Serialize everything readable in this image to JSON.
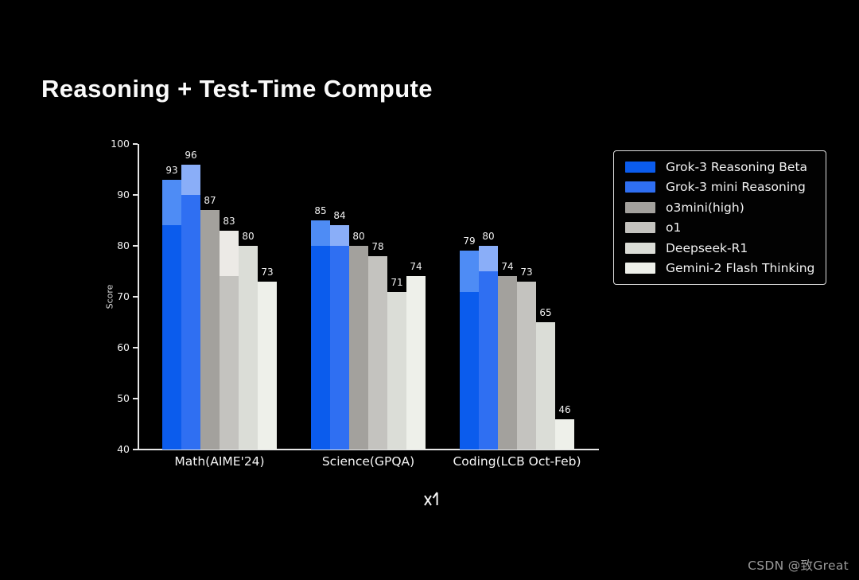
{
  "page": {
    "title": "Reasoning + Test-Time Compute",
    "watermark": "CSDN @致Great"
  },
  "chart_data": {
    "type": "bar",
    "title": "Reasoning + Test-Time Compute",
    "xlabel": "",
    "ylabel": "Score",
    "ylim": [
      40,
      100
    ],
    "yticks": [
      40,
      50,
      60,
      70,
      80,
      90,
      100
    ],
    "grid": false,
    "legend_position": "upper right outside",
    "categories": [
      "Math(AIME'24)",
      "Science(GPQA)",
      "Coding(LCB Oct-Feb)"
    ],
    "series": [
      {
        "name": "Grok-3 Reasoning Beta",
        "color": "#0b5ced",
        "light_color": "#4e8cf5",
        "values": [
          93,
          85,
          79
        ],
        "solid_values": [
          84,
          80,
          71
        ]
      },
      {
        "name": "Grok-3 mini Reasoning",
        "color": "#2f6ff2",
        "light_color": "#8aaef8",
        "values": [
          96,
          84,
          80
        ],
        "solid_values": [
          90,
          80,
          75
        ]
      },
      {
        "name": "o3mini(high)",
        "color": "#a3a19d",
        "light_color": "#a3a19d",
        "values": [
          87,
          80,
          74
        ],
        "solid_values": [
          87,
          80,
          74
        ]
      },
      {
        "name": "o1",
        "color": "#c4c3bf",
        "light_color": "#eceae6",
        "values": [
          83,
          78,
          73
        ],
        "solid_values": [
          74,
          78,
          73
        ]
      },
      {
        "name": "Deepseek-R1",
        "color": "#dbddd7",
        "light_color": "#dbddd7",
        "values": [
          80,
          71,
          65
        ],
        "solid_values": [
          80,
          71,
          65
        ]
      },
      {
        "name": "Gemini-2 Flash Thinking",
        "color": "#eef0ea",
        "light_color": "#eef0ea",
        "values": [
          73,
          74,
          46
        ],
        "solid_values": [
          73,
          74,
          46
        ]
      }
    ]
  }
}
